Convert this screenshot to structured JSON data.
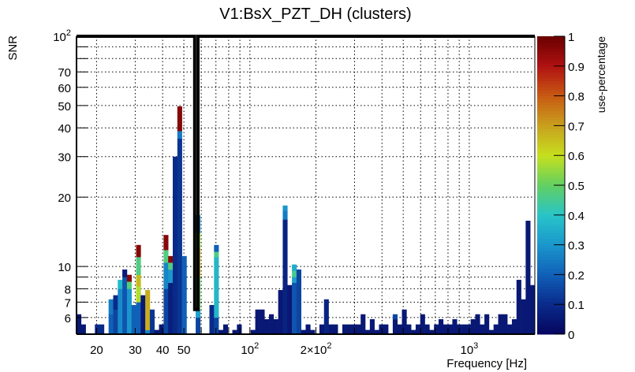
{
  "chart_data": {
    "type": "heatmap",
    "title": "V1:BsX_PZT_DH (clusters)",
    "xlabel": "Frequency [Hz]",
    "ylabel": "SNR",
    "zlabel": "use-percentage",
    "xscale": "log",
    "yscale": "log",
    "xlim": [
      16.2,
      1990
    ],
    "ylim": [
      5.08,
      100
    ],
    "zlim": [
      0,
      1
    ],
    "x_bins": 100,
    "grid": true,
    "x_ticks": [
      {
        "value": 20,
        "label": "20"
      },
      {
        "value": 30,
        "label": "30"
      },
      {
        "value": 40,
        "label": "40"
      },
      {
        "value": 50,
        "label": "50"
      },
      {
        "value": 100,
        "label": "10^2"
      },
      {
        "value": 200,
        "label": "2×10^2"
      },
      {
        "value": 1000,
        "label": "10^3"
      }
    ],
    "x_grid": [
      20,
      30,
      40,
      50,
      60,
      70,
      80,
      90,
      100,
      200,
      300,
      400,
      500,
      600,
      700,
      800,
      900,
      1000
    ],
    "y_ticks": [
      {
        "value": 6,
        "label": "6"
      },
      {
        "value": 7,
        "label": "7"
      },
      {
        "value": 8,
        "label": "8"
      },
      {
        "value": 9,
        "label": ""
      },
      {
        "value": 10,
        "label": "10"
      },
      {
        "value": 20,
        "label": "20"
      },
      {
        "value": 30,
        "label": "30"
      },
      {
        "value": 40,
        "label": "40"
      },
      {
        "value": 50,
        "label": "50"
      },
      {
        "value": 60,
        "label": "60"
      },
      {
        "value": 70,
        "label": "70"
      },
      {
        "value": 80,
        "label": ""
      },
      {
        "value": 90,
        "label": ""
      },
      {
        "value": 100,
        "label": "10^2"
      }
    ],
    "z_ticks": [
      {
        "value": 0,
        "label": "0"
      },
      {
        "value": 0.1,
        "label": "0.1"
      },
      {
        "value": 0.2,
        "label": "0.2"
      },
      {
        "value": 0.3,
        "label": "0.3"
      },
      {
        "value": 0.4,
        "label": "0.4"
      },
      {
        "value": 0.5,
        "label": "0.5"
      },
      {
        "value": 0.6,
        "label": "0.6"
      },
      {
        "value": 0.7,
        "label": "0.7"
      },
      {
        "value": 0.8,
        "label": "0.8"
      },
      {
        "value": 0.9,
        "label": "0.9"
      },
      {
        "value": 1,
        "label": "1"
      }
    ],
    "colormap": [
      [
        0.0,
        "#05055e"
      ],
      [
        0.1,
        "#0a2a8a"
      ],
      [
        0.2,
        "#1060b8"
      ],
      [
        0.3,
        "#1a96cc"
      ],
      [
        0.4,
        "#28c4c8"
      ],
      [
        0.5,
        "#62cf62"
      ],
      [
        0.6,
        "#c6e01e"
      ],
      [
        0.7,
        "#c8a01e"
      ],
      [
        0.8,
        "#c85a12"
      ],
      [
        0.9,
        "#b01212"
      ],
      [
        1.0,
        "#6a0000"
      ]
    ],
    "columns": [
      [
        0,
        [
          [
            6.2,
            0.05
          ]
        ]
      ],
      [
        1,
        [
          [
            5.6,
            0.05
          ]
        ]
      ],
      [
        4,
        [
          [
            5.6,
            0.1
          ]
        ]
      ],
      [
        5,
        [
          [
            5.6,
            0.1
          ]
        ]
      ],
      [
        7,
        [
          [
            6.2,
            0.2
          ],
          [
            7.2,
            0.25
          ]
        ]
      ],
      [
        8,
        [
          [
            6.5,
            0.15
          ],
          [
            7.5,
            0.1
          ]
        ]
      ],
      [
        9,
        [
          [
            8.0,
            0.28
          ],
          [
            8.75,
            0.38
          ]
        ]
      ],
      [
        10,
        [
          [
            9.0,
            0.18
          ],
          [
            9.7,
            0.06
          ]
        ]
      ],
      [
        11,
        [
          [
            8.0,
            0.3
          ],
          [
            8.6,
            0.48
          ],
          [
            9.2,
            0.96
          ]
        ]
      ],
      [
        12,
        [
          [
            6.8,
            0.2
          ]
        ]
      ],
      [
        13,
        [
          [
            7.0,
            0.2
          ],
          [
            8.2,
            0.58
          ],
          [
            9.2,
            0.66
          ],
          [
            11.0,
            0.47
          ],
          [
            12.4,
            0.96
          ]
        ]
      ],
      [
        14,
        [
          [
            7.5,
            0.05
          ]
        ]
      ],
      [
        15,
        [
          [
            5.3,
            0.27
          ],
          [
            7.9,
            0.68
          ]
        ]
      ],
      [
        16,
        [
          [
            6.5,
            0.12
          ]
        ]
      ],
      [
        17,
        [
          [
            5.3,
            0.05
          ]
        ]
      ],
      [
        18,
        [
          [
            5.6,
            0.05
          ]
        ]
      ],
      [
        19,
        [
          [
            8.0,
            0.15
          ],
          [
            10.4,
            0.27
          ],
          [
            11.8,
            0.47
          ],
          [
            13.7,
            0.96
          ]
        ]
      ],
      [
        20,
        [
          [
            8.5,
            0.07
          ],
          [
            9.7,
            0.3
          ],
          [
            10.4,
            0.47
          ],
          [
            11.1,
            0.96
          ]
        ]
      ],
      [
        21,
        [
          [
            30,
            0.1
          ]
        ]
      ],
      [
        22,
        [
          [
            36,
            0.12
          ],
          [
            38.8,
            0.25
          ],
          [
            49.6,
            0.96
          ]
        ]
      ],
      [
        23,
        [
          [
            11.1,
            0.2
          ]
        ]
      ],
      [
        26,
        [
          [
            6.0,
            0.15
          ],
          [
            6.5,
            0.32
          ],
          [
            9,
            0.5
          ],
          [
            12,
            0.68
          ],
          [
            14,
            0.55
          ],
          [
            16.7,
            0.3
          ]
        ]
      ],
      [
        29,
        [
          [
            6.8,
            0.1
          ]
        ]
      ],
      [
        30,
        [
          [
            6.0,
            0.15
          ],
          [
            11.0,
            0.37
          ],
          [
            11.6,
            0.47
          ],
          [
            12.4,
            0.2
          ]
        ]
      ],
      [
        31,
        [
          [
            5.3,
            0.05
          ]
        ]
      ],
      [
        32,
        [
          [
            5.6,
            0.05
          ]
        ]
      ],
      [
        34,
        [
          [
            5.3,
            0.05
          ]
        ]
      ],
      [
        35,
        [
          [
            5.6,
            0.05
          ]
        ]
      ],
      [
        38,
        [
          [
            5.3,
            0.05
          ]
        ]
      ],
      [
        39,
        [
          [
            6.5,
            0.05
          ]
        ]
      ],
      [
        40,
        [
          [
            6.5,
            0.05
          ]
        ]
      ],
      [
        41,
        [
          [
            5.9,
            0.05
          ]
        ]
      ],
      [
        42,
        [
          [
            6.2,
            0.05
          ]
        ]
      ],
      [
        43,
        [
          [
            5.9,
            0.05
          ]
        ]
      ],
      [
        44,
        [
          [
            7.9,
            0.05
          ]
        ]
      ],
      [
        45,
        [
          [
            16,
            0.08
          ],
          [
            17.5,
            0.25
          ],
          [
            18.4,
            0.3
          ]
        ]
      ],
      [
        46,
        [
          [
            8.3,
            0.05
          ]
        ]
      ],
      [
        47,
        [
          [
            8.5,
            0.18
          ],
          [
            9.0,
            0.32
          ],
          [
            9.6,
            0.45
          ],
          [
            10.2,
            0.35
          ]
        ]
      ],
      [
        48,
        [
          [
            9.7,
            0.15
          ]
        ]
      ],
      [
        49,
        [
          [
            5.3,
            0.05
          ]
        ]
      ],
      [
        50,
        [
          [
            5.6,
            0.05
          ]
        ]
      ],
      [
        51,
        [
          [
            5.3,
            0.05
          ]
        ]
      ],
      [
        53,
        [
          [
            5.6,
            0.05
          ]
        ]
      ],
      [
        54,
        [
          [
            7.2,
            0.08
          ]
        ]
      ],
      [
        55,
        [
          [
            5.6,
            0.05
          ]
        ]
      ],
      [
        56,
        [
          [
            5.6,
            0.05
          ]
        ]
      ],
      [
        58,
        [
          [
            5.6,
            0.05
          ]
        ]
      ],
      [
        59,
        [
          [
            5.6,
            0.05
          ]
        ]
      ],
      [
        60,
        [
          [
            5.6,
            0.05
          ]
        ]
      ],
      [
        61,
        [
          [
            5.6,
            0.05
          ]
        ]
      ],
      [
        62,
        [
          [
            6.2,
            0.05
          ]
        ]
      ],
      [
        63,
        [
          [
            5.3,
            0.05
          ]
        ]
      ],
      [
        64,
        [
          [
            5.9,
            0.05
          ]
        ]
      ],
      [
        65,
        [
          [
            5.3,
            0.05
          ]
        ]
      ],
      [
        66,
        [
          [
            5.6,
            0.05
          ]
        ]
      ],
      [
        67,
        [
          [
            5.6,
            0.05
          ]
        ]
      ],
      [
        69,
        [
          [
            5.9,
            0.05
          ],
          [
            6.2,
            0.15
          ]
        ]
      ],
      [
        70,
        [
          [
            5.6,
            0.05
          ]
        ]
      ],
      [
        71,
        [
          [
            6.5,
            0.05
          ]
        ]
      ],
      [
        72,
        [
          [
            5.6,
            0.05
          ]
        ]
      ],
      [
        73,
        [
          [
            5.3,
            0.05
          ]
        ]
      ],
      [
        74,
        [
          [
            5.6,
            0.05
          ]
        ]
      ],
      [
        75,
        [
          [
            6.2,
            0.05
          ]
        ]
      ],
      [
        76,
        [
          [
            5.6,
            0.05
          ]
        ]
      ],
      [
        77,
        [
          [
            5.3,
            0.05
          ]
        ]
      ],
      [
        78,
        [
          [
            5.6,
            0.05
          ]
        ]
      ],
      [
        79,
        [
          [
            5.9,
            0.05
          ]
        ]
      ],
      [
        80,
        [
          [
            5.6,
            0.05
          ]
        ]
      ],
      [
        81,
        [
          [
            5.6,
            0.05
          ]
        ]
      ],
      [
        82,
        [
          [
            5.9,
            0.05
          ]
        ]
      ],
      [
        83,
        [
          [
            5.6,
            0.05
          ]
        ]
      ],
      [
        84,
        [
          [
            5.6,
            0.05
          ]
        ]
      ],
      [
        85,
        [
          [
            5.6,
            0.05
          ]
        ]
      ],
      [
        86,
        [
          [
            5.9,
            0.05
          ]
        ]
      ],
      [
        87,
        [
          [
            6.2,
            0.05
          ]
        ]
      ],
      [
        88,
        [
          [
            5.6,
            0.05
          ]
        ]
      ],
      [
        89,
        [
          [
            6.2,
            0.05
          ]
        ]
      ],
      [
        90,
        [
          [
            5.3,
            0.05
          ]
        ]
      ],
      [
        91,
        [
          [
            5.6,
            0.05
          ]
        ]
      ],
      [
        92,
        [
          [
            6.2,
            0.05
          ]
        ]
      ],
      [
        93,
        [
          [
            6.2,
            0.05
          ]
        ]
      ],
      [
        94,
        [
          [
            5.6,
            0.05
          ]
        ]
      ],
      [
        95,
        [
          [
            5.9,
            0.05
          ]
        ]
      ],
      [
        96,
        [
          [
            8.75,
            0.05
          ]
        ]
      ],
      [
        97,
        [
          [
            7.2,
            0.05
          ]
        ]
      ],
      [
        98,
        [
          [
            15.8,
            0.05
          ]
        ]
      ],
      [
        99,
        [
          [
            8.3,
            0.05
          ]
        ]
      ]
    ],
    "outline_freq_hz": [
      56,
      58
    ],
    "outline_snr": 6.5
  }
}
